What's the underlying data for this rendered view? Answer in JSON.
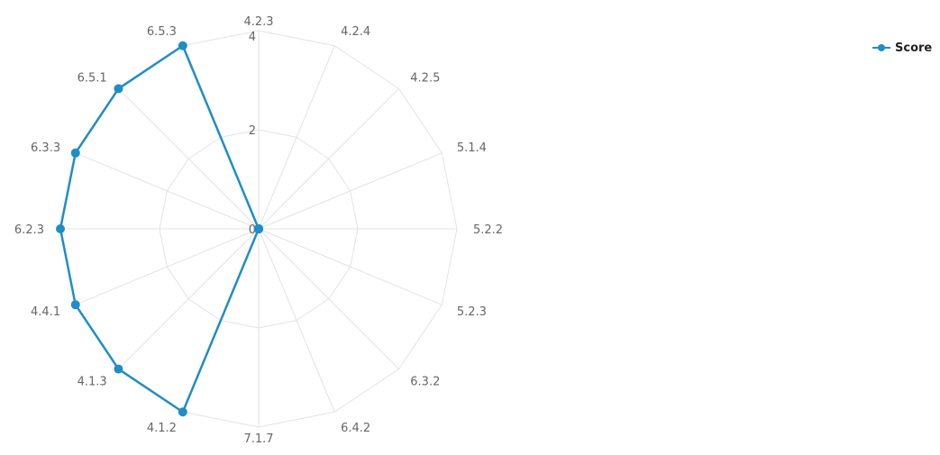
{
  "chart_data": {
    "type": "radar",
    "categories": [
      "4.2.3",
      "4.2.4",
      "4.2.5",
      "5.1.4",
      "5.2.2",
      "5.2.3",
      "6.3.2",
      "6.4.2",
      "7.1.7",
      "4.1.2",
      "4.1.3",
      "4.4.1",
      "6.2.3",
      "6.3.3",
      "6.5.1",
      "6.5.3"
    ],
    "series": [
      {
        "name": "Score",
        "color": "#1f8dc6",
        "values": [
          0,
          0,
          0,
          0,
          0,
          0,
          0,
          0,
          0,
          4,
          4,
          4,
          4,
          4,
          4,
          4
        ]
      }
    ],
    "rlim": [
      0,
      4
    ],
    "ticks": [
      0,
      2,
      4
    ],
    "grid": true,
    "legend_position": "top-right"
  }
}
